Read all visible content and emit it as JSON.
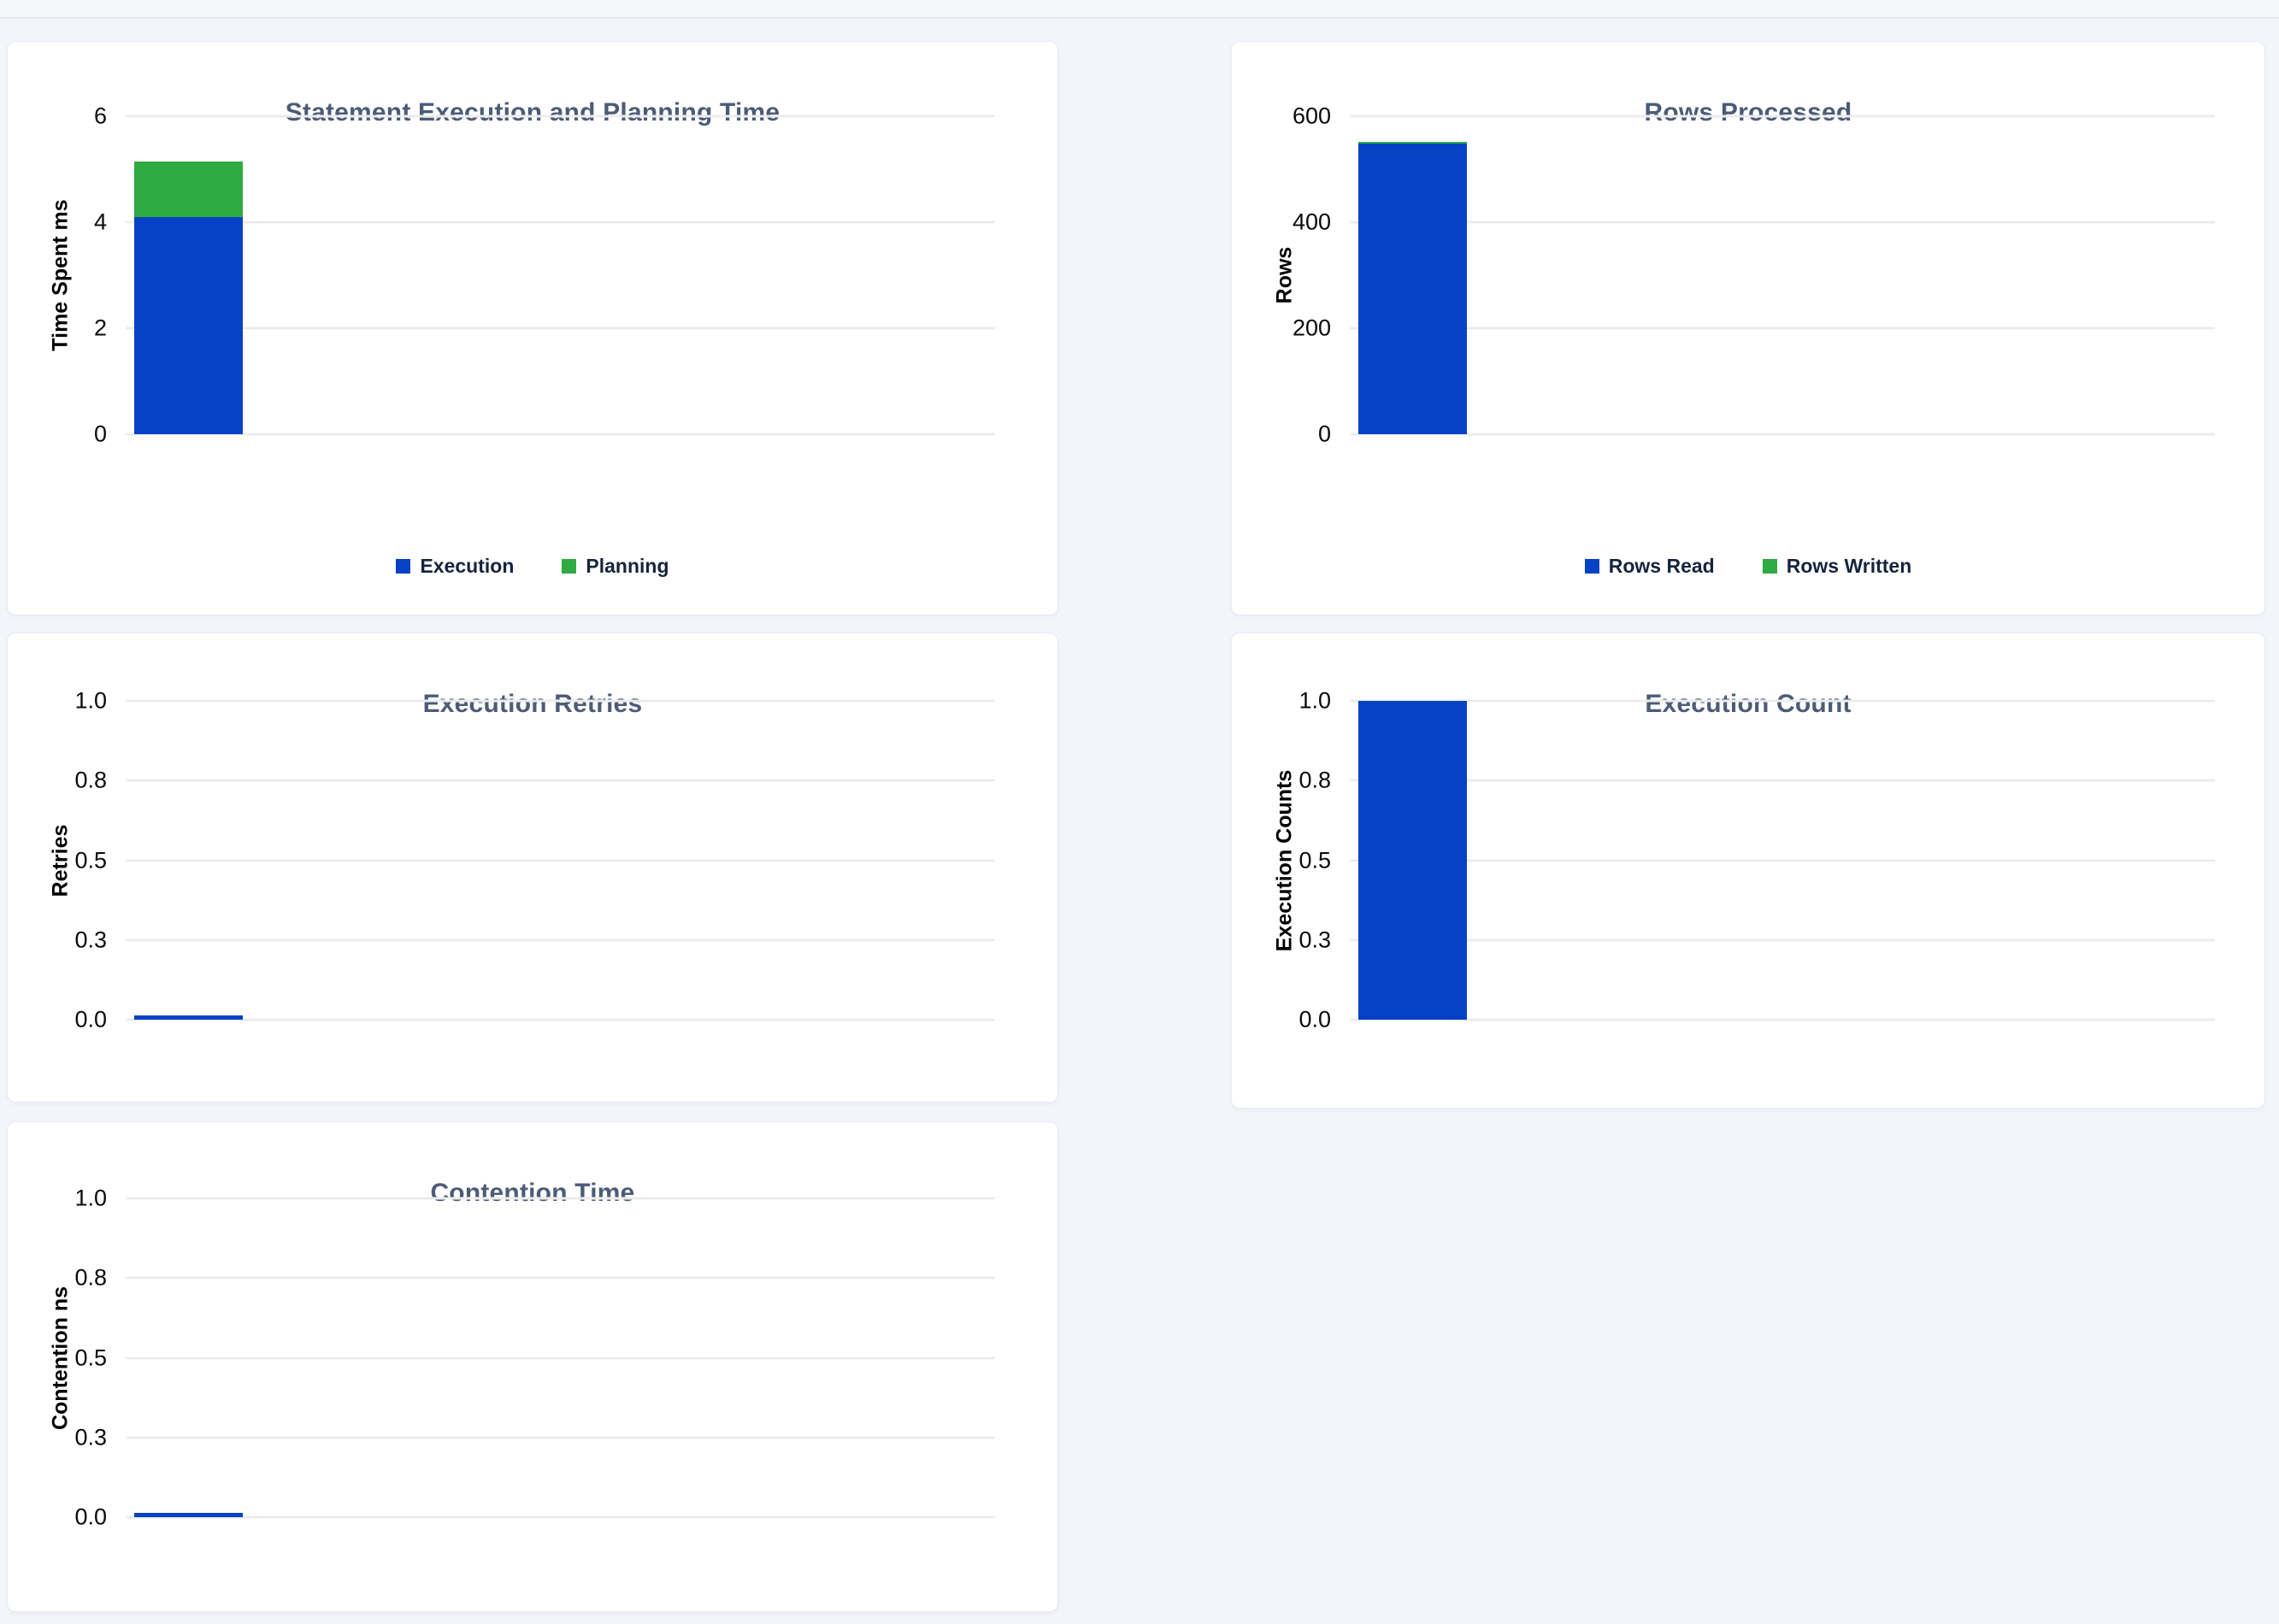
{
  "page": {
    "background_color": "#f3f5fa",
    "accent_blue": "#0642c6",
    "accent_green": "#2eab42"
  },
  "chart_data": [
    {
      "id": "statement-execution-planning-time",
      "type": "bar",
      "title": "Statement Execution and Planning Time",
      "ylabel": "Time Spent ms",
      "xlabel": "",
      "ylim": [
        0,
        6
      ],
      "grid": true,
      "yticks": [
        "6",
        "4",
        "2",
        "0"
      ],
      "legend_position": "bottom",
      "series": [
        {
          "name": "Execution",
          "color": "#0642c6",
          "value": 4.1,
          "offset": 0
        },
        {
          "name": "Planning",
          "color": "#2eab42",
          "value": 1.05,
          "offset": 4.1
        }
      ]
    },
    {
      "id": "rows-processed",
      "type": "bar",
      "title": "Rows Processed",
      "ylabel": "Rows",
      "xlabel": "",
      "ylim": [
        0,
        600
      ],
      "grid": true,
      "yticks": [
        "600",
        "400",
        "200",
        "0"
      ],
      "legend_position": "bottom",
      "series": [
        {
          "name": "Rows Read",
          "color": "#0642c6",
          "value": 548,
          "offset": 0
        },
        {
          "name": "Rows Written",
          "color": "#2eab42",
          "value": 2,
          "offset": 548
        }
      ]
    },
    {
      "id": "execution-retries",
      "type": "bar",
      "title": "Execution Retries",
      "ylabel": "Retries",
      "xlabel": "",
      "ylim": [
        0,
        1
      ],
      "grid": true,
      "yticks": [
        "1.0",
        "0.8",
        "0.5",
        "0.3",
        "0.0"
      ],
      "series": [
        {
          "name": "Retries",
          "color": "#0642c6",
          "value": 0,
          "offset": 0
        }
      ]
    },
    {
      "id": "execution-count",
      "type": "bar",
      "title": "Execution Count",
      "ylabel": "Execution Counts",
      "xlabel": "",
      "ylim": [
        0,
        1
      ],
      "grid": true,
      "yticks": [
        "1.0",
        "0.8",
        "0.5",
        "0.3",
        "0.0"
      ],
      "series": [
        {
          "name": "Execution Count",
          "color": "#0642c6",
          "value": 1,
          "offset": 0
        }
      ]
    },
    {
      "id": "contention-time",
      "type": "bar",
      "title": "Contention Time",
      "ylabel": "Contention ns",
      "xlabel": "",
      "ylim": [
        0,
        1
      ],
      "grid": true,
      "yticks": [
        "1.0",
        "0.8",
        "0.5",
        "0.3",
        "0.0"
      ],
      "series": [
        {
          "name": "Contention",
          "color": "#0642c6",
          "value": 0,
          "offset": 0
        }
      ]
    }
  ]
}
